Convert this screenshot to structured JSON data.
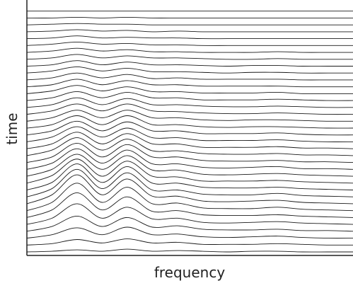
{
  "chart_data": {
    "type": "waterfall",
    "x_label": "frequency",
    "y_label": "time",
    "color": "#1a1a1a",
    "x": [
      0,
      1,
      2,
      3,
      4,
      5,
      6,
      7,
      8,
      9,
      10,
      11,
      12,
      13
    ],
    "xlim": [
      0,
      13
    ],
    "ylim": [
      0,
      36
    ],
    "series": [
      {
        "values": [
          0,
          0.1,
          0.3,
          0.1,
          0.4,
          0.1,
          0.2,
          0.1,
          0,
          0.1,
          0.1,
          0,
          0,
          0
        ]
      },
      {
        "values": [
          0,
          0.2,
          0.8,
          0.3,
          0.9,
          0.3,
          0.4,
          0.1,
          0.1,
          0.1,
          0.2,
          0.1,
          0,
          0
        ]
      },
      {
        "values": [
          0,
          0.5,
          1.5,
          0.5,
          1.6,
          0.5,
          0.6,
          0.2,
          0.1,
          0.2,
          0.3,
          0.1,
          0,
          0
        ]
      },
      {
        "values": [
          0,
          0.7,
          2.2,
          0.7,
          2,
          0.6,
          0.8,
          0.3,
          0.2,
          0.2,
          0.3,
          0.1,
          0.1,
          0
        ]
      },
      {
        "values": [
          0,
          0.9,
          3,
          0.9,
          2.5,
          0.8,
          0.9,
          0.3,
          0.2,
          0.3,
          0.4,
          0.2,
          0.1,
          0
        ]
      },
      {
        "values": [
          0,
          1.1,
          3.6,
          1.1,
          3,
          0.9,
          1,
          0.4,
          0.3,
          0.3,
          0.4,
          0.2,
          0.1,
          0
        ]
      },
      {
        "values": [
          0,
          1.2,
          4,
          1.2,
          3.4,
          1,
          1.1,
          0.4,
          0.3,
          0.3,
          0.5,
          0.2,
          0.1,
          0
        ]
      },
      {
        "values": [
          0,
          1.3,
          4.2,
          1.3,
          3.6,
          1.1,
          1.1,
          0.4,
          0.3,
          0.4,
          0.5,
          0.2,
          0.1,
          0
        ]
      },
      {
        "values": [
          0,
          1.2,
          4,
          1.2,
          3.5,
          1,
          1,
          0.4,
          0.3,
          0.3,
          0.5,
          0.2,
          0.1,
          0
        ]
      },
      {
        "values": [
          0,
          1.1,
          3.8,
          1.1,
          3.4,
          1,
          1,
          0.4,
          0.3,
          0.3,
          0.4,
          0.2,
          0.1,
          0
        ]
      },
      {
        "values": [
          0,
          1.1,
          3.5,
          1,
          3.2,
          1,
          0.9,
          0.3,
          0.3,
          0.3,
          0.4,
          0.2,
          0.1,
          0
        ]
      },
      {
        "values": [
          0,
          1,
          3.2,
          1,
          3,
          0.9,
          0.9,
          0.3,
          0.2,
          0.3,
          0.4,
          0.2,
          0.1,
          0
        ]
      },
      {
        "values": [
          0,
          0.9,
          3,
          0.9,
          2.8,
          0.8,
          0.8,
          0.3,
          0.2,
          0.3,
          0.4,
          0.1,
          0.1,
          0
        ]
      },
      {
        "values": [
          0,
          0.8,
          2.8,
          0.8,
          2.6,
          0.8,
          0.8,
          0.3,
          0.2,
          0.2,
          0.3,
          0.1,
          0.1,
          0
        ]
      },
      {
        "values": [
          0,
          0.8,
          2.6,
          0.8,
          2.4,
          0.7,
          0.7,
          0.3,
          0.2,
          0.2,
          0.3,
          0.1,
          0.1,
          0
        ]
      },
      {
        "values": [
          0,
          0.7,
          2.4,
          0.7,
          2.2,
          0.7,
          0.7,
          0.2,
          0.2,
          0.2,
          0.3,
          0.1,
          0.1,
          0
        ]
      },
      {
        "values": [
          0,
          0.7,
          2.2,
          0.7,
          2,
          0.6,
          0.6,
          0.2,
          0.2,
          0.2,
          0.3,
          0.1,
          0,
          0
        ]
      },
      {
        "values": [
          0,
          0.6,
          2,
          0.6,
          1.9,
          0.6,
          0.6,
          0.2,
          0.2,
          0.2,
          0.3,
          0.1,
          0,
          0
        ]
      },
      {
        "values": [
          0,
          0.5,
          1.8,
          0.5,
          1.8,
          0.5,
          0.5,
          0.2,
          0.1,
          0.2,
          0.2,
          0.1,
          0,
          0
        ]
      },
      {
        "values": [
          0,
          0.5,
          1.6,
          0.5,
          1.6,
          0.5,
          0.5,
          0.2,
          0.1,
          0.2,
          0.2,
          0.1,
          0,
          0
        ]
      },
      {
        "values": [
          0,
          0.5,
          1.5,
          0.5,
          1.5,
          0.5,
          0.4,
          0.2,
          0.1,
          0.1,
          0.2,
          0.1,
          0,
          0
        ]
      },
      {
        "values": [
          0,
          0.4,
          1.4,
          0.4,
          1.3,
          0.4,
          0.4,
          0.2,
          0.1,
          0.1,
          0.2,
          0.1,
          0,
          0
        ]
      },
      {
        "values": [
          0,
          0.4,
          1.3,
          0.4,
          1.2,
          0.4,
          0.4,
          0.1,
          0.1,
          0.1,
          0.2,
          0.1,
          0,
          0
        ]
      },
      {
        "values": [
          0,
          0.4,
          1.2,
          0.4,
          1,
          0.3,
          0.3,
          0.1,
          0.1,
          0.1,
          0.2,
          0,
          0,
          0
        ]
      },
      {
        "values": [
          0,
          0.3,
          1.1,
          0.3,
          0.9,
          0.3,
          0.3,
          0.1,
          0.1,
          0.1,
          0.1,
          0,
          0,
          0
        ]
      },
      {
        "values": [
          0,
          0.3,
          1,
          0.3,
          0.8,
          0.2,
          0.3,
          0.1,
          0.1,
          0.1,
          0.1,
          0,
          0,
          0
        ]
      },
      {
        "values": [
          0,
          0.3,
          0.9,
          0.3,
          0.7,
          0.2,
          0.2,
          0.1,
          0,
          0.1,
          0.1,
          0,
          0,
          0
        ]
      },
      {
        "values": [
          0,
          0.2,
          0.8,
          0.2,
          0.6,
          0.2,
          0.2,
          0.1,
          0,
          0.1,
          0.1,
          0,
          0,
          0
        ]
      },
      {
        "values": [
          0,
          0.2,
          0.7,
          0.2,
          0.5,
          0.2,
          0.2,
          0.1,
          0,
          0,
          0.1,
          0,
          0,
          0
        ]
      },
      {
        "values": [
          0,
          0.2,
          0.6,
          0.2,
          0.4,
          0.1,
          0.1,
          0,
          0,
          0,
          0.1,
          0,
          0,
          0
        ]
      },
      {
        "values": [
          0,
          0.2,
          0.5,
          0.2,
          0.3,
          0.1,
          0.1,
          0,
          0,
          0,
          0,
          0,
          0,
          0
        ]
      },
      {
        "values": [
          0,
          0.1,
          0.4,
          0.1,
          0.2,
          0.1,
          0.1,
          0,
          0,
          0,
          0,
          0,
          0,
          0
        ]
      },
      {
        "values": [
          0,
          0.1,
          0.3,
          0.1,
          0.2,
          0,
          0.1,
          0,
          0,
          0,
          0,
          0,
          0,
          0
        ]
      },
      {
        "values": [
          0,
          0.1,
          0.2,
          0.1,
          0.1,
          0,
          0,
          0,
          0,
          0,
          0,
          0,
          0,
          0
        ]
      },
      {
        "values": [
          0,
          0,
          0.1,
          0,
          0.1,
          0,
          0,
          0,
          0,
          0,
          0,
          0,
          0,
          0
        ]
      },
      {
        "values": [
          0,
          0,
          0,
          0,
          0,
          0,
          0,
          0,
          0,
          0,
          0,
          0,
          0,
          0
        ]
      }
    ]
  }
}
